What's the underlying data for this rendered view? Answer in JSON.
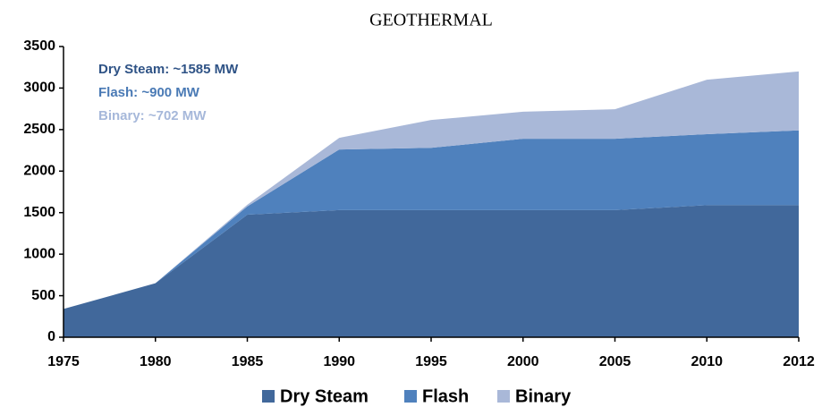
{
  "chart_data": {
    "type": "stacked_area",
    "title": "GEOTHERMAL",
    "categories": [
      "1975",
      "1980",
      "1985",
      "1990",
      "1995",
      "2000",
      "2005",
      "2010",
      "2012"
    ],
    "series": [
      {
        "name": "Dry Steam",
        "color": "#41689b",
        "values": [
          340,
          650,
          1475,
          1530,
          1530,
          1530,
          1530,
          1590,
          1590
        ]
      },
      {
        "name": "Flash",
        "color": "#4f81bd",
        "values": [
          0,
          0,
          100,
          730,
          750,
          860,
          860,
          855,
          900
        ]
      },
      {
        "name": "Binary",
        "color": "#a9b8d8",
        "values": [
          0,
          0,
          20,
          140,
          335,
          325,
          355,
          655,
          710
        ]
      }
    ],
    "annotations": [
      {
        "text": "Dry Steam: ~1585 MW",
        "color": "#2f5386"
      },
      {
        "text": "Flash: ~900 MW",
        "color": "#4a7ab5"
      },
      {
        "text": "Binary: ~702 MW",
        "color": "#a6b8da"
      }
    ],
    "ylim": [
      0,
      3500
    ],
    "yticks": [
      0,
      500,
      1000,
      1500,
      2000,
      2500,
      3000,
      3500
    ],
    "grid": false,
    "legend": "bottom"
  }
}
